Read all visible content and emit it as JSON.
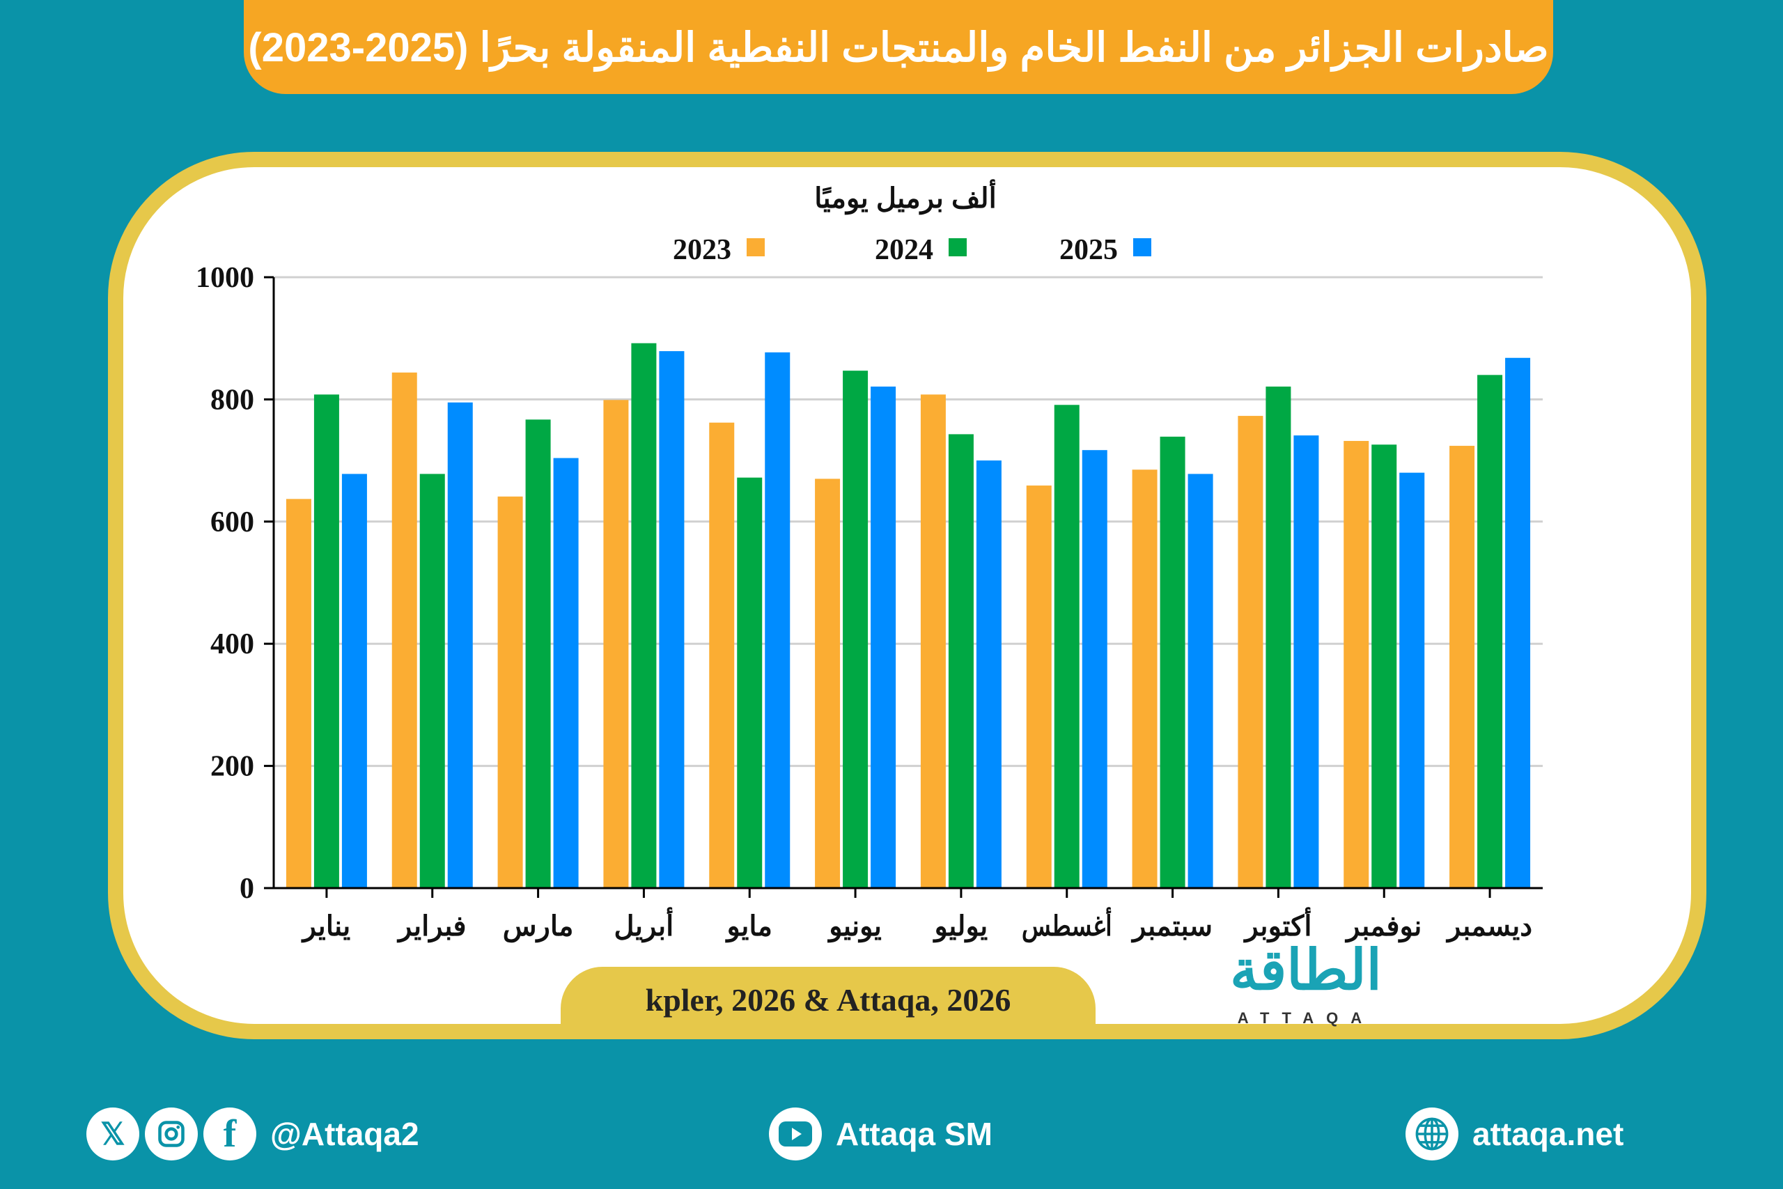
{
  "title": "صادرات الجزائر من النفط الخام والمنتجات النفطية المنقولة بحرًا (2025-2023)",
  "source": "kpler, 2026 & Attaqa, 2026",
  "logo": {
    "arabic": "الطاقة",
    "latin": "ATTAQA"
  },
  "colors": {
    "background": "#0a93a8",
    "banner": "#f6a623",
    "frame": "#e6c84a",
    "2023": "#fbad33",
    "2024": "#00a844",
    "2025": "#008cff"
  },
  "footer": {
    "social_handle": "@Attaqa2",
    "social_icons": [
      "x-icon",
      "instagram-icon",
      "facebook-icon"
    ],
    "youtube": "Attaqa SM",
    "website": "attaqa.net"
  },
  "chart_data": {
    "type": "bar",
    "ylabel": "ألف برميل يوميًا",
    "ylim": [
      0,
      1000
    ],
    "yticks": [
      "0",
      "200",
      "400",
      "600",
      "800",
      "1000"
    ],
    "grid": true,
    "legend": "top-center",
    "categories": [
      "يناير",
      "فبراير",
      "مارس",
      "أبريل",
      "مايو",
      "يونيو",
      "يوليو",
      "أغسطس",
      "سبتمبر",
      "أكتوبر",
      "نوفمبر",
      "ديسمبر"
    ],
    "series": [
      {
        "name": "2023",
        "color": "#fbad33",
        "values": [
          637,
          844,
          641,
          799,
          762,
          670,
          808,
          659,
          685,
          773,
          732,
          724
        ]
      },
      {
        "name": "2024",
        "color": "#00a844",
        "values": [
          808,
          678,
          767,
          892,
          672,
          847,
          743,
          791,
          739,
          821,
          726,
          840
        ]
      },
      {
        "name": "2025",
        "color": "#008cff",
        "values": [
          678,
          795,
          704,
          879,
          877,
          821,
          700,
          717,
          678,
          741,
          680,
          868
        ]
      }
    ]
  }
}
